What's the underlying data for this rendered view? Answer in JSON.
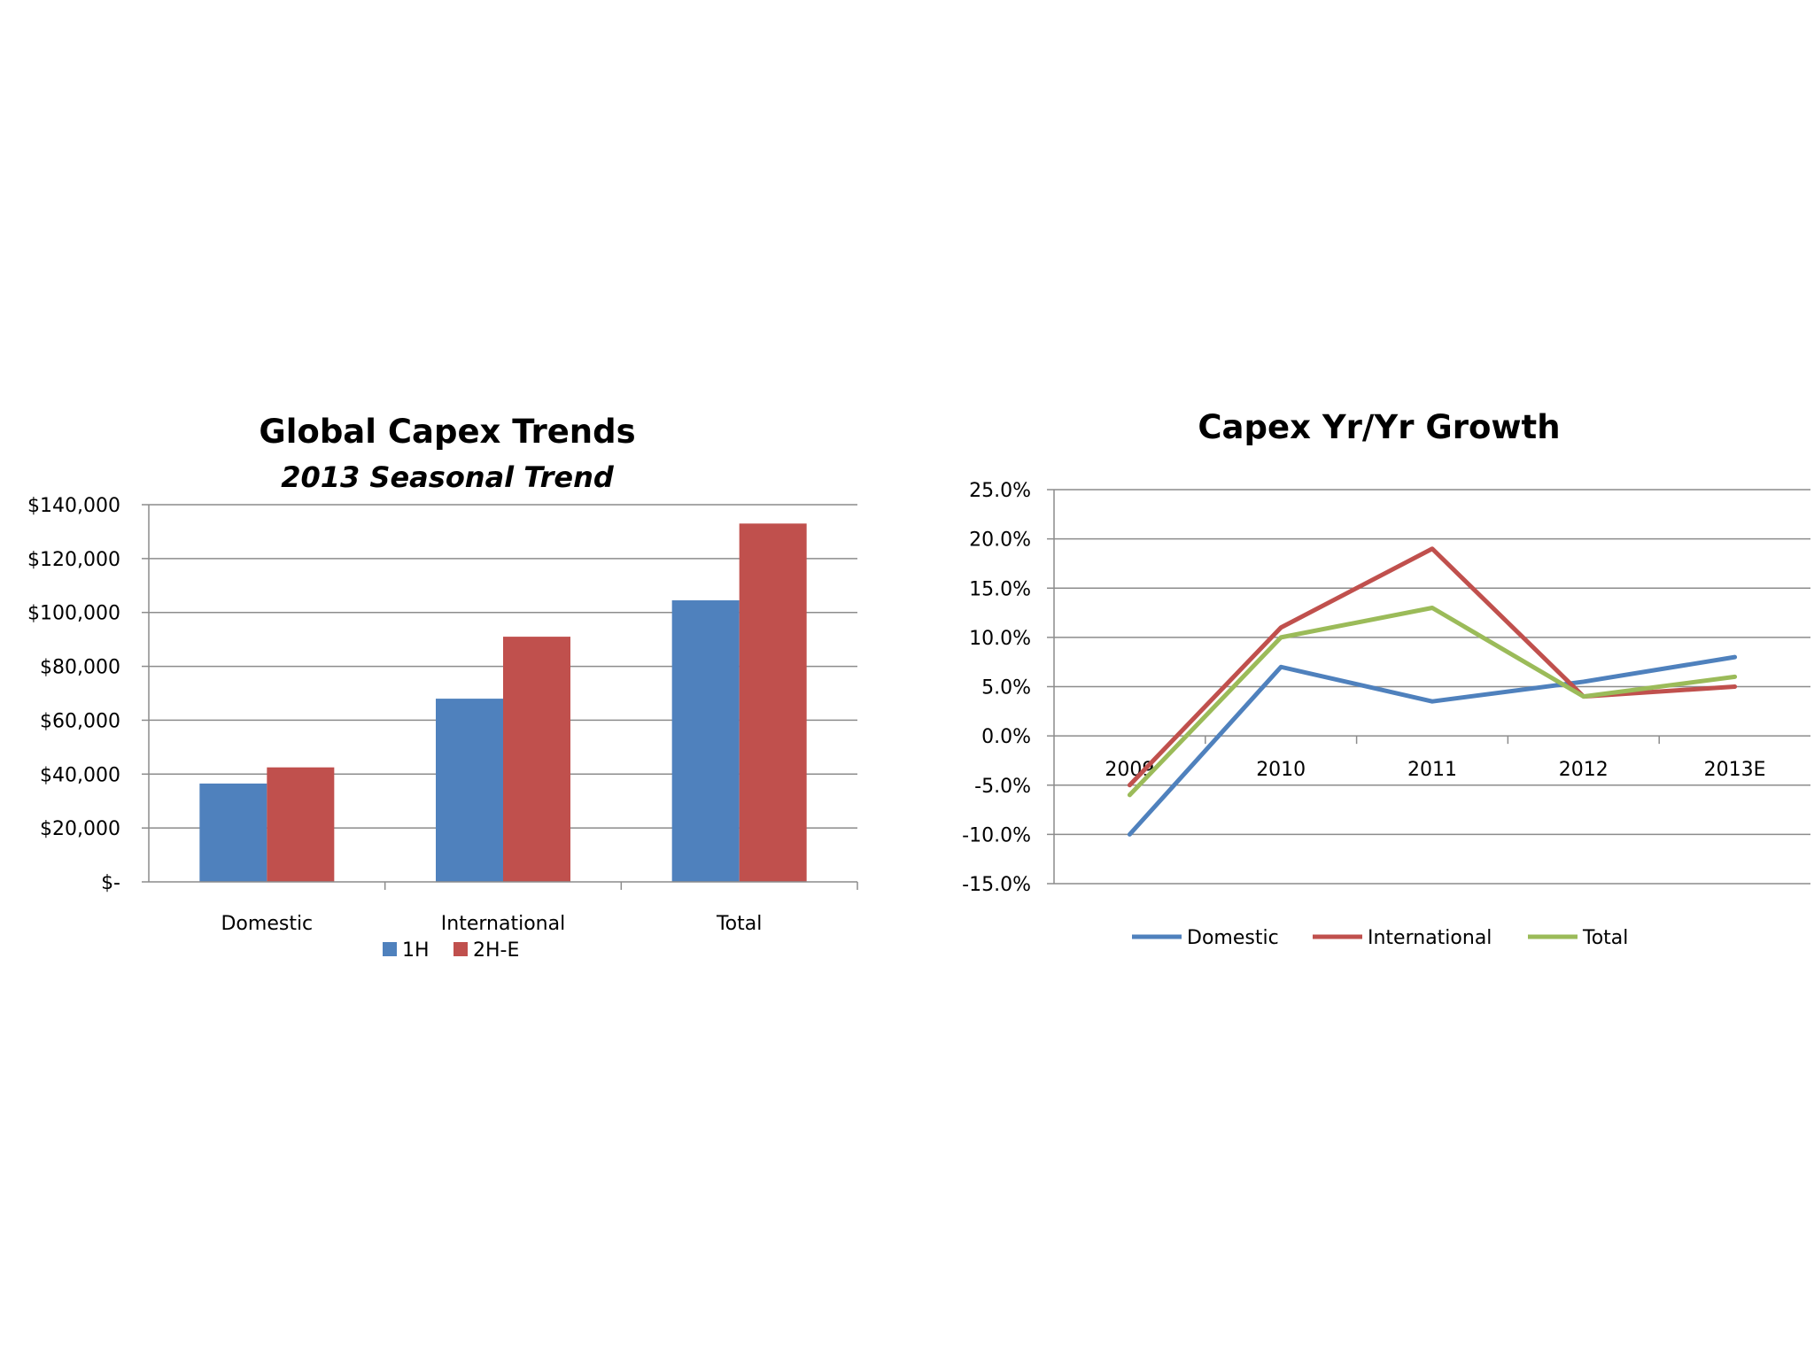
{
  "colors": {
    "blue": "#4f81bd",
    "red": "#c0504d",
    "green": "#9bbb59",
    "grid": "#8c8c8c"
  },
  "chart_data": [
    {
      "type": "bar",
      "title": "Global Capex Trends",
      "subtitle": "2013 Seasonal Trend",
      "xlabel": "",
      "ylabel": "",
      "categories": [
        "Domestic",
        "International",
        "Total"
      ],
      "series": [
        {
          "name": "1H",
          "color": "#4f81bd",
          "values": [
            36500,
            68000,
            104500
          ]
        },
        {
          "name": "2H-E",
          "color": "#c0504d",
          "values": [
            42500,
            91000,
            133000
          ]
        }
      ],
      "ylim": [
        0,
        140000
      ],
      "yticks": [
        0,
        20000,
        40000,
        60000,
        80000,
        100000,
        120000,
        140000
      ],
      "ytick_labels": [
        "$-",
        "$20,000",
        "$40,000",
        "$60,000",
        "$80,000",
        "$100,000",
        "$120,000",
        "$140,000"
      ],
      "grid": true,
      "legend": "bottom"
    },
    {
      "type": "line",
      "title": "Capex Yr/Yr Growth",
      "xlabel": "",
      "ylabel": "",
      "categories": [
        "2009",
        "2010",
        "2011",
        "2012",
        "2013E"
      ],
      "series": [
        {
          "name": "Domestic",
          "color": "#4f81bd",
          "values": [
            -10.0,
            7.0,
            3.5,
            5.5,
            8.0
          ]
        },
        {
          "name": "International",
          "color": "#c0504d",
          "values": [
            -5.0,
            11.0,
            19.0,
            4.0,
            5.0
          ]
        },
        {
          "name": "Total",
          "color": "#9bbb59",
          "values": [
            -6.0,
            10.0,
            13.0,
            4.0,
            6.0
          ]
        }
      ],
      "ylim": [
        -15,
        25
      ],
      "yticks": [
        -15,
        -10,
        -5,
        0,
        5,
        10,
        15,
        20,
        25
      ],
      "ytick_labels": [
        "-15.0%",
        "-10.0%",
        "-5.0%",
        "0.0%",
        "5.0%",
        "10.0%",
        "15.0%",
        "20.0%",
        "25.0%"
      ],
      "grid": true,
      "legend": "bottom"
    }
  ]
}
